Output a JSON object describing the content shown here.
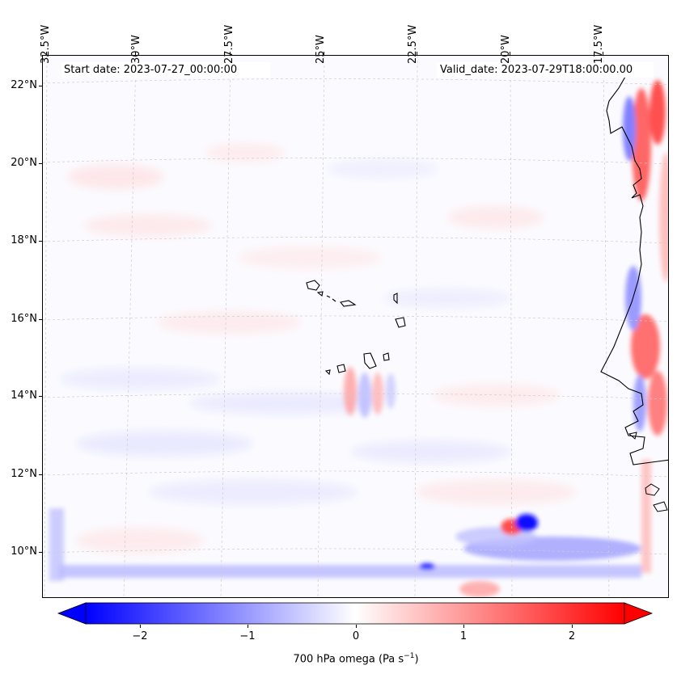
{
  "map": {
    "variable": "700 hPa omega",
    "unit_text": "(Pa s",
    "unit_exp": "−1",
    "unit_close": ")",
    "start_date": "Start date: 2023-07-27_00:00:00",
    "valid_date": "Valid_date: 2023-07-29T18:00:00.00",
    "lon_labels": [
      "32.5°W",
      "30°W",
      "27.5°W",
      "25°W",
      "22.5°W",
      "20°W",
      "17.5°W"
    ],
    "lat_labels": [
      "22°N",
      "20°N",
      "18°N",
      "16°N",
      "14°N",
      "12°N",
      "10°N"
    ],
    "colorbar": {
      "min": -2.7,
      "max": 2.7,
      "ticks": [
        "−2",
        "−1",
        "0",
        "1",
        "2"
      ],
      "tick_values": [
        -2,
        -1,
        0,
        1,
        2
      ],
      "colormap": "bwr",
      "extend": "both"
    },
    "colors": {
      "negative": "#0000ff",
      "positive": "#ff0000",
      "zero": "#ffffff",
      "coast": "#000000",
      "grid": "#cccccc"
    }
  }
}
